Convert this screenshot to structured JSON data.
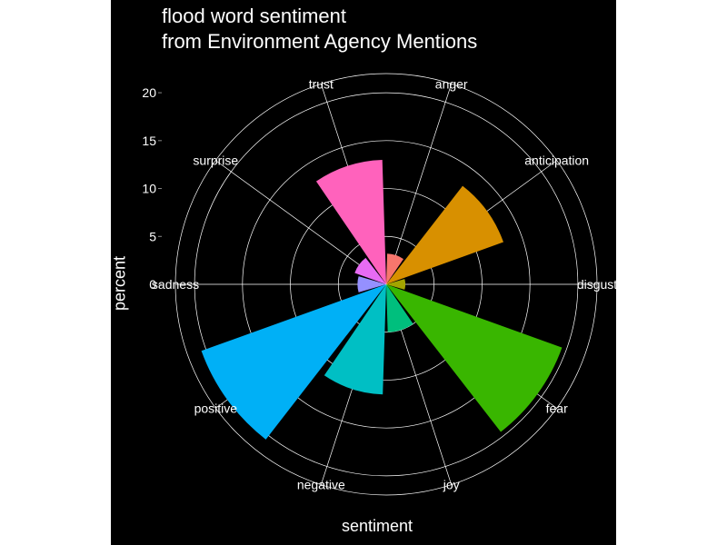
{
  "chart_data": {
    "type": "bar",
    "coord": "polar",
    "title": "flood word sentiment",
    "subtitle": "from Environment Agency Mentions",
    "xlabel": "sentiment",
    "ylabel": "percent",
    "ylim": [
      0,
      22
    ],
    "yticks": [
      0,
      5,
      10,
      15,
      20
    ],
    "categories": [
      "anger",
      "anticipation",
      "disgust",
      "fear",
      "joy",
      "negative",
      "positive",
      "sadness",
      "surprise",
      "trust"
    ],
    "values": [
      3.2,
      13.0,
      2.0,
      19.5,
      5.0,
      11.5,
      20.5,
      3.0,
      3.5,
      13.0
    ],
    "colors": [
      "#F8766D",
      "#D89000",
      "#A3A500",
      "#39B600",
      "#00BF7D",
      "#00BFC4",
      "#00B0F6",
      "#9590FF",
      "#E76BF3",
      "#FF62BC"
    ],
    "grid": true,
    "background": "#000000",
    "text_color": "#ffffff",
    "grid_color": "#ffffff"
  }
}
